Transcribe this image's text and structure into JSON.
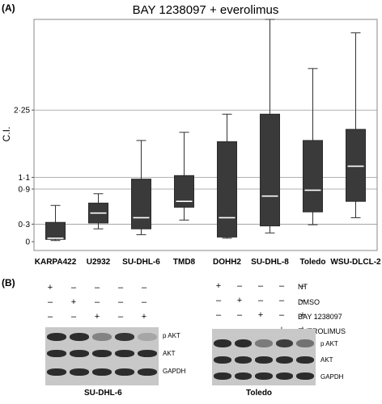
{
  "panel_a": {
    "label": "(A)",
    "chart_data": {
      "type": "box",
      "title": "BAY 1238097 + everolimus",
      "xlabel": "",
      "ylabel": "C.I.",
      "ylim": [
        -0.15,
        3.8
      ],
      "ytick_labels": [
        "0",
        "0·3",
        "0·9",
        "1·1",
        "2·25"
      ],
      "yticks": [
        0,
        0.3,
        0.9,
        1.1,
        2.25
      ],
      "hlines": [
        0.3,
        0.9,
        1.1,
        2.25
      ],
      "categories": [
        "KARPA422",
        "U2932",
        "SU-DHL-6",
        "TMD8",
        "DOHH2",
        "SU-DHL-8",
        "Toledo",
        "WSU-DLCL-2"
      ],
      "boxes": [
        {
          "min": 0.02,
          "q1": 0.04,
          "median": 0.06,
          "q3": 0.33,
          "max": 0.62
        },
        {
          "min": 0.22,
          "q1": 0.32,
          "median": 0.49,
          "q3": 0.66,
          "max": 0.82
        },
        {
          "min": 0.12,
          "q1": 0.22,
          "median": 0.41,
          "q3": 1.07,
          "max": 1.73
        },
        {
          "min": 0.37,
          "q1": 0.59,
          "median": 0.69,
          "q3": 1.13,
          "max": 1.87
        },
        {
          "min": 0.06,
          "q1": 0.08,
          "median": 0.41,
          "q3": 1.71,
          "max": 2.18
        },
        {
          "min": 0.15,
          "q1": 0.27,
          "median": 0.78,
          "q3": 2.18,
          "max": 3.97
        },
        {
          "min": 0.29,
          "q1": 0.51,
          "median": 0.88,
          "q3": 1.73,
          "max": 2.96
        },
        {
          "min": 0.41,
          "q1": 0.69,
          "median": 1.29,
          "q3": 1.92,
          "max": 3.57
        }
      ]
    }
  },
  "panel_b": {
    "label": "(B)",
    "left": {
      "cell_line": "SU-DHL-6",
      "signs": [
        [
          "+",
          "–",
          "–",
          "–",
          "–"
        ],
        [
          "–",
          "+",
          "–",
          "–",
          "–"
        ],
        [
          "–",
          "–",
          "+",
          "–",
          "+"
        ],
        [
          "–",
          "–",
          "–",
          "+",
          "+"
        ]
      ],
      "bands": [
        "p AKT",
        "AKT",
        "GAPDH"
      ],
      "pakt_intensity": [
        0.95,
        0.95,
        0.45,
        0.9,
        0.25
      ]
    },
    "right": {
      "cell_line": "Toledo",
      "treatments": [
        "NT",
        "DMSO",
        "BAY 1238097",
        "EVEROLIMUS"
      ],
      "signs": [
        [
          "+",
          "–",
          "–",
          "–",
          "–"
        ],
        [
          "–",
          "+",
          "–",
          "–",
          "–"
        ],
        [
          "–",
          "–",
          "+",
          "–",
          "+"
        ],
        [
          "–",
          "–",
          "–",
          "+",
          "+"
        ]
      ],
      "bands": [
        "p AKT",
        "AKT",
        "GAPDH"
      ],
      "pakt_intensity": [
        0.95,
        0.95,
        0.5,
        0.85,
        0.55
      ]
    }
  }
}
